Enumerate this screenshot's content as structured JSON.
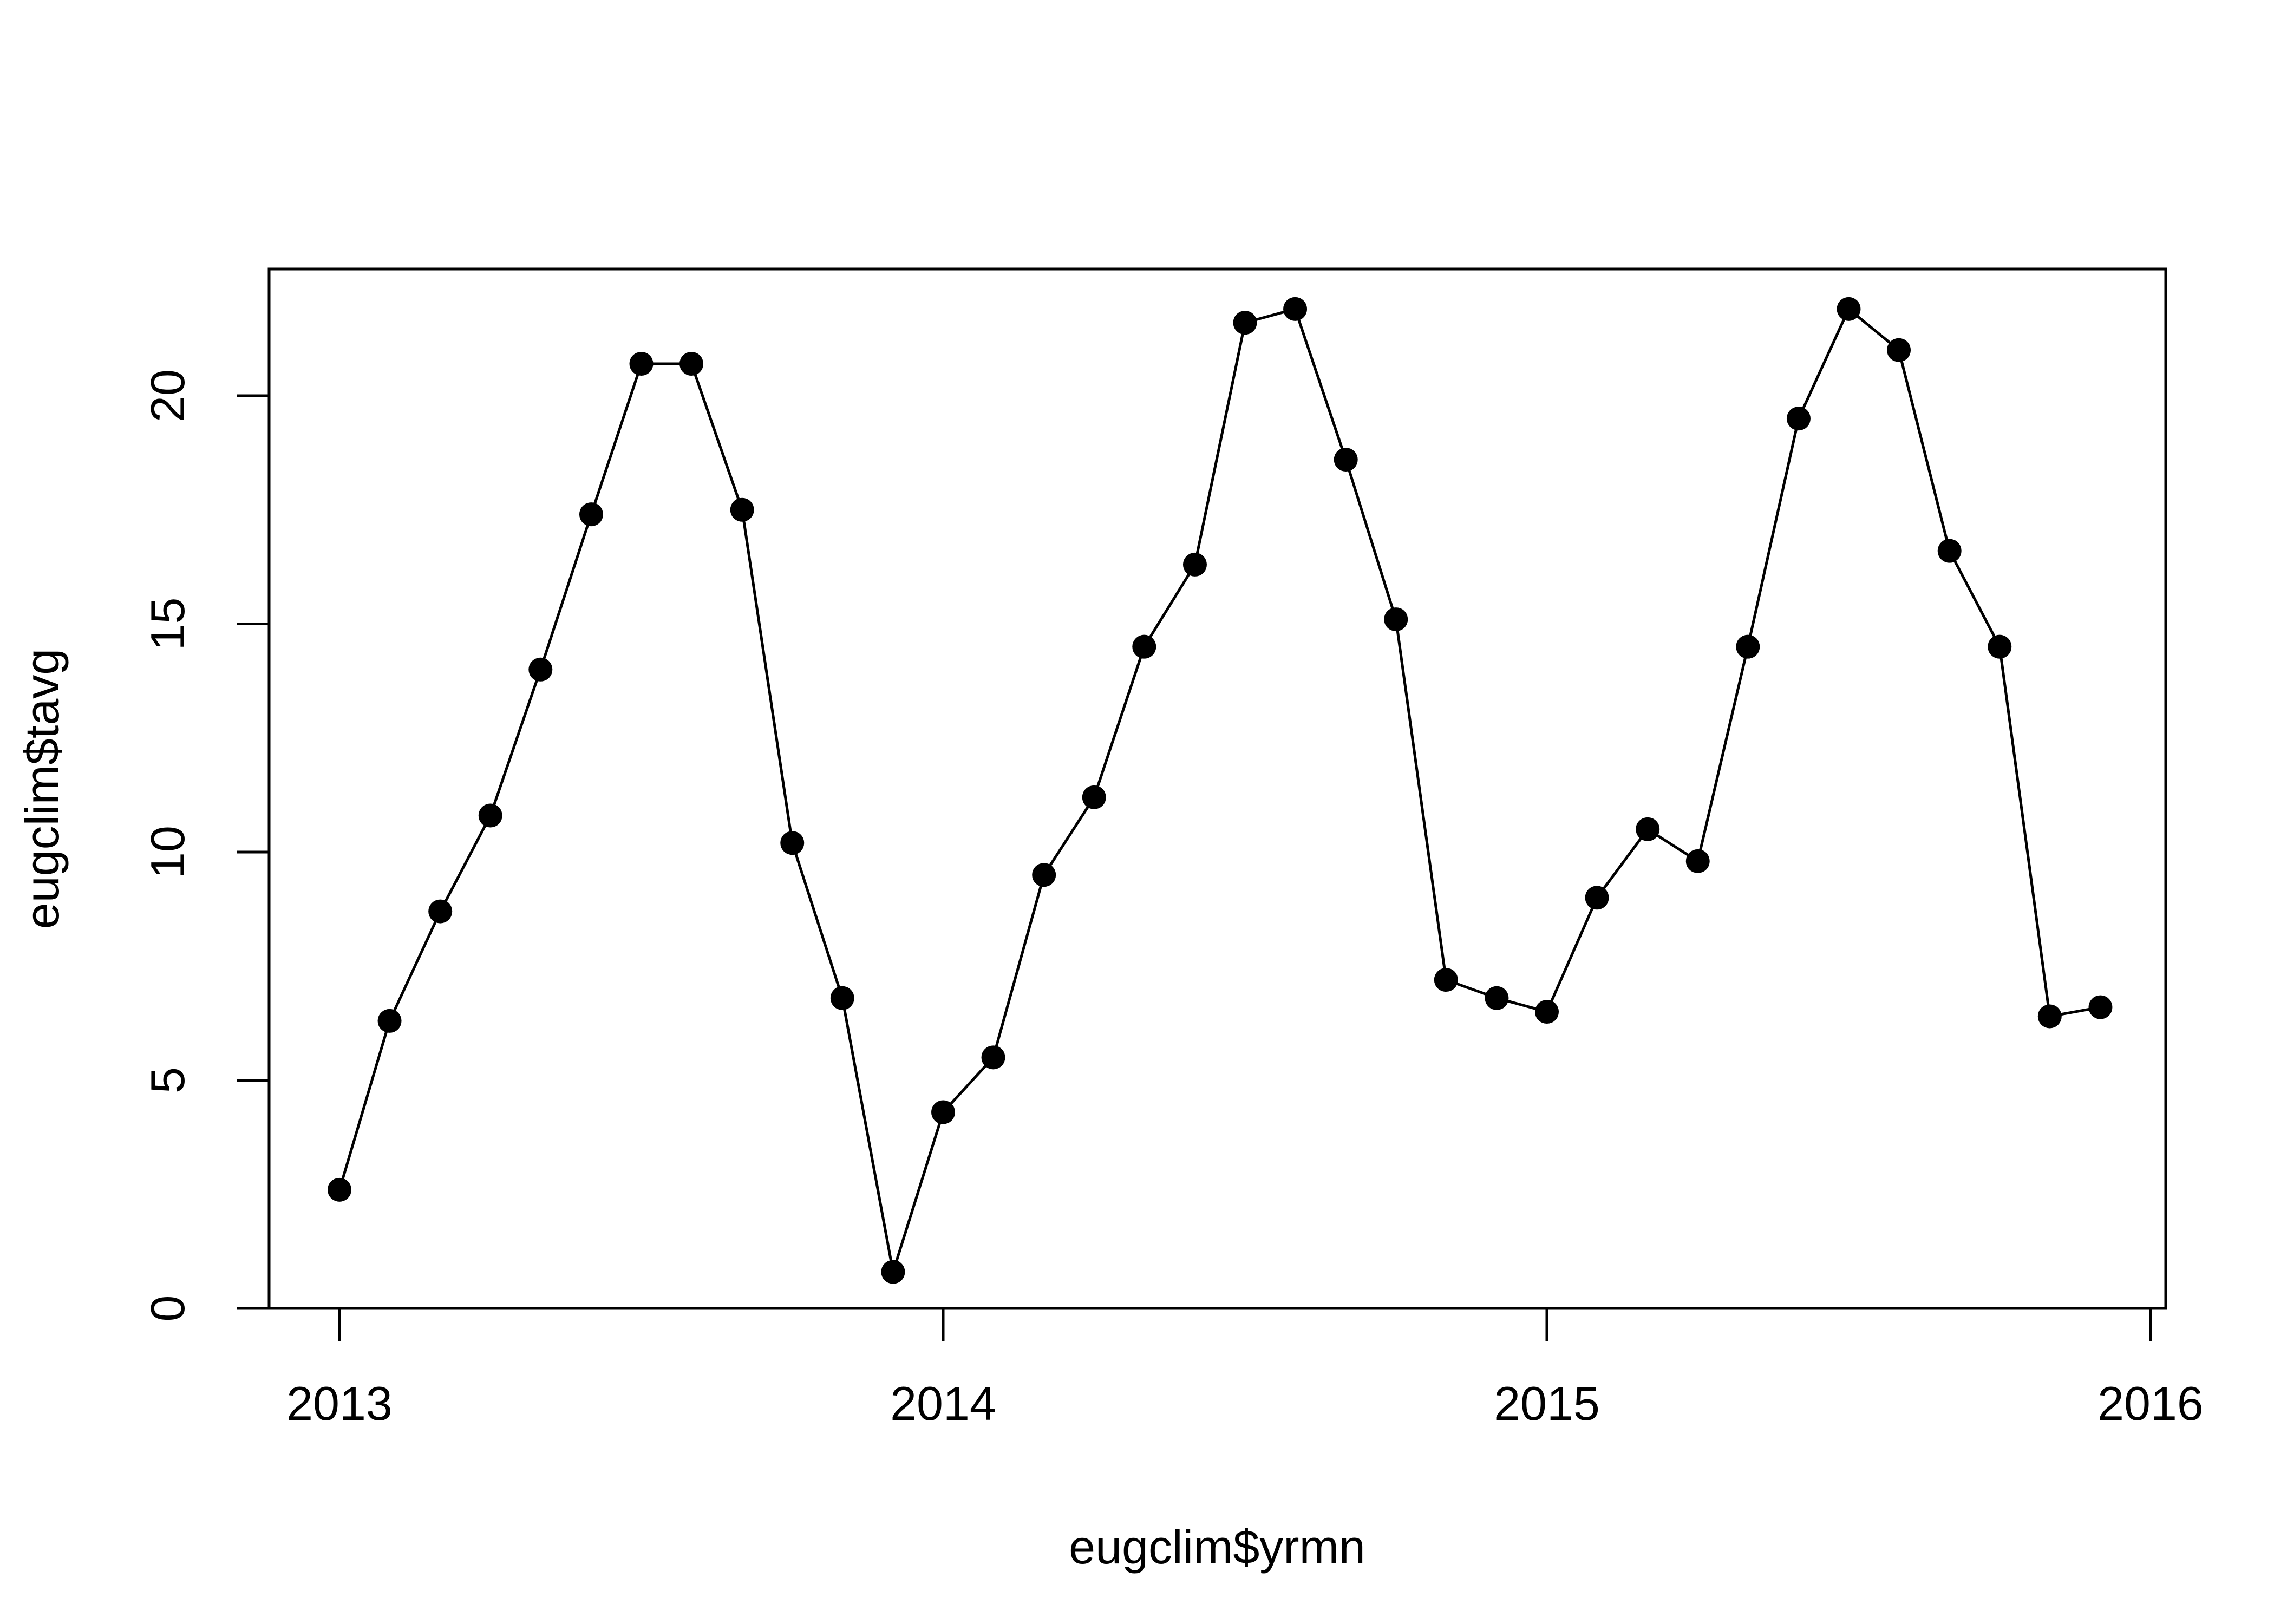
{
  "chart_data": {
    "type": "line",
    "title": "",
    "xlabel": "eugclim$yrmn",
    "ylabel": "eugclim$tavg",
    "xlim": [
      2012.88,
      2016.04
    ],
    "ylim": [
      0,
      22.8
    ],
    "x_ticks": [
      2013,
      2014,
      2015,
      2016
    ],
    "y_ticks": [
      0,
      5,
      10,
      15,
      20
    ],
    "grid": false,
    "legend": "none",
    "colors": {
      "line": "#000000",
      "points": "#000000",
      "axes": "#000000",
      "background": "#ffffff"
    },
    "series": [
      {
        "x": [
          2013.0,
          2013.083,
          2013.167,
          2013.25,
          2013.333,
          2013.417,
          2013.5,
          2013.583,
          2013.667,
          2013.75,
          2013.833,
          2013.917,
          2014.0,
          2014.083,
          2014.167,
          2014.25,
          2014.333,
          2014.417,
          2014.5,
          2014.583,
          2014.667,
          2014.75,
          2014.833,
          2014.917,
          2015.0,
          2015.083,
          2015.167,
          2015.25,
          2015.333,
          2015.417,
          2015.5,
          2015.583,
          2015.667,
          2015.75,
          2015.833,
          2015.917
        ],
        "values": [
          2.6,
          6.3,
          8.7,
          10.8,
          14.0,
          17.4,
          20.7,
          20.7,
          17.5,
          10.2,
          6.8,
          0.8,
          4.3,
          5.5,
          9.5,
          11.2,
          14.5,
          16.3,
          21.6,
          21.9,
          18.6,
          15.1,
          7.2,
          6.8,
          6.5,
          9.0,
          10.5,
          9.8,
          14.5,
          19.5,
          21.9,
          21.0,
          16.6,
          14.5,
          6.4,
          6.6
        ]
      }
    ]
  }
}
